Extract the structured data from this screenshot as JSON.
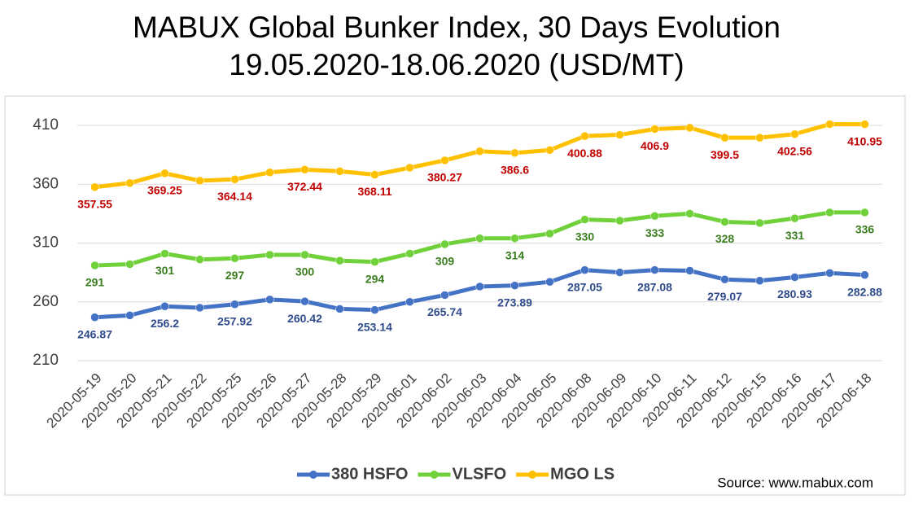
{
  "chart_data": {
    "type": "line",
    "title": "MABUX Global Bunker Index, 30 Days Evolution",
    "subtitle": "19.05.2020-18.06.2020 (USD/MT)",
    "source": "Source: www.mabux.com",
    "categories": [
      "2020-05-19",
      "2020-05-20",
      "2020-05-21",
      "2020-05-22",
      "2020-05-25",
      "2020-05-26",
      "2020-05-27",
      "2020-05-28",
      "2020-05-29",
      "2020-06-01",
      "2020-06-02",
      "2020-06-03",
      "2020-06-04",
      "2020-06-05",
      "2020-06-08",
      "2020-06-09",
      "2020-06-10",
      "2020-06-11",
      "2020-06-12",
      "2020-06-15",
      "2020-06-16",
      "2020-06-17",
      "2020-06-18"
    ],
    "series": [
      {
        "name": "380 HSFO",
        "color": "#4472c4",
        "label_color": "#2f4b8c",
        "values": [
          246.87,
          248.5,
          256.2,
          255,
          257.92,
          262,
          260.42,
          254,
          253.14,
          260,
          265.74,
          273,
          273.89,
          277,
          287.05,
          285,
          287.08,
          286.5,
          279.07,
          278,
          280.93,
          284.5,
          282.88
        ]
      },
      {
        "name": "VLSFO",
        "color": "#70d13a",
        "label_color": "#3a7d1e",
        "values": [
          291,
          292,
          301,
          296,
          297,
          300,
          300,
          295,
          294,
          301,
          309,
          314,
          314,
          318,
          330,
          329,
          333,
          335,
          328,
          327,
          331,
          336,
          336
        ]
      },
      {
        "name": "MGO LS",
        "color": "#ffc000",
        "label_color": "#c00000",
        "values": [
          357.55,
          361,
          369.25,
          363,
          364.14,
          370,
          372.44,
          371,
          368.11,
          374,
          380.27,
          388,
          386.6,
          389,
          400.88,
          402,
          406.9,
          408,
          399.5,
          399.5,
          402.56,
          411,
          410.95
        ]
      }
    ],
    "ylim": [
      210,
      410
    ],
    "yticks": [
      210,
      260,
      310,
      360,
      410
    ],
    "grid": true,
    "legend": "bottom"
  }
}
